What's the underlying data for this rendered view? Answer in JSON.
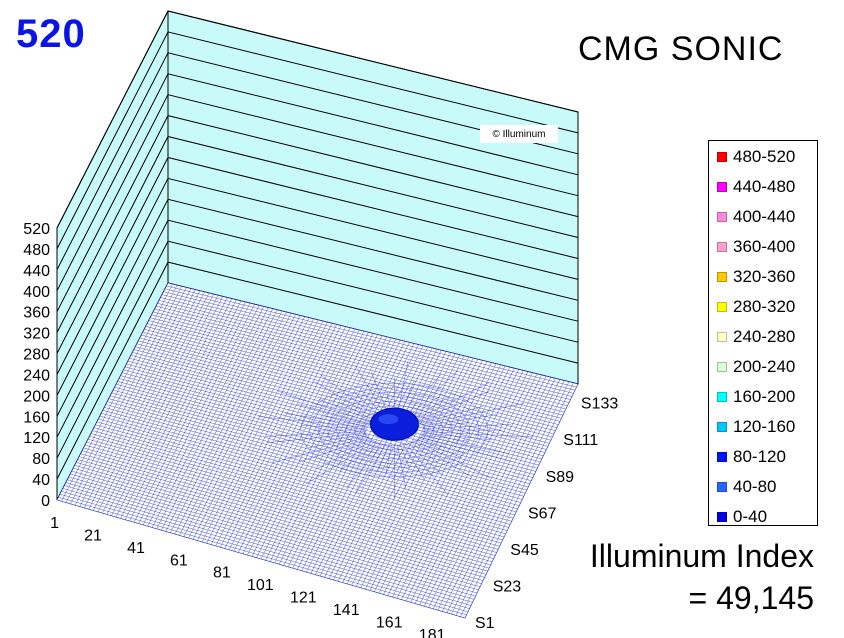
{
  "header": {
    "max_value": "520",
    "title": "CMG SONIC"
  },
  "watermark": "© Illuminum",
  "index": {
    "label": "Illuminum Index",
    "value": "= 49,145"
  },
  "colors": {
    "back_wall": "#c8fafa",
    "wall_line": "#000000",
    "mesh": "#2e3cd2",
    "peak": "#0a1edc"
  },
  "legend": [
    {
      "label": "480-520",
      "color": "#ff0000"
    },
    {
      "label": "440-480",
      "color": "#ff00ff"
    },
    {
      "label": "400-440",
      "color": "#ff88dd"
    },
    {
      "label": "360-400",
      "color": "#ffa0c8"
    },
    {
      "label": "320-360",
      "color": "#ffc800"
    },
    {
      "label": "280-320",
      "color": "#ffff00"
    },
    {
      "label": "240-280",
      "color": "#ffffc8"
    },
    {
      "label": "200-240",
      "color": "#d8ffd8"
    },
    {
      "label": "160-200",
      "color": "#00ffff"
    },
    {
      "label": "120-160",
      "color": "#00c8ff"
    },
    {
      "label": "80-120",
      "color": "#0014ff"
    },
    {
      "label": "40-80",
      "color": "#2864ff"
    },
    {
      "label": "0-40",
      "color": "#0000e6"
    }
  ],
  "chart_data": {
    "type": "surface3d",
    "z_ticks": [
      "0",
      "40",
      "80",
      "120",
      "160",
      "200",
      "240",
      "280",
      "320",
      "360",
      "400",
      "440",
      "480",
      "520"
    ],
    "zlim": [
      0,
      520
    ],
    "x_ticks": [
      "1",
      "21",
      "41",
      "61",
      "81",
      "101",
      "121",
      "141",
      "161",
      "181"
    ],
    "y_ticks": [
      "S1",
      "S23",
      "S45",
      "S67",
      "S89",
      "S111",
      "S133"
    ],
    "peak": {
      "x": 121,
      "y": "S89",
      "value_range": "40-80"
    }
  }
}
